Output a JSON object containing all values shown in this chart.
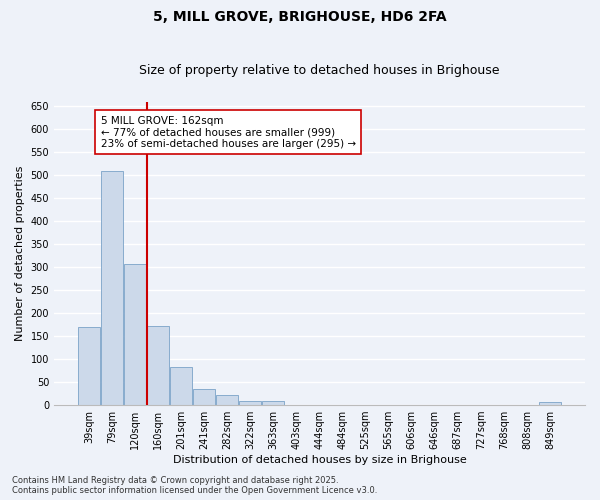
{
  "title": "5, MILL GROVE, BRIGHOUSE, HD6 2FA",
  "subtitle": "Size of property relative to detached houses in Brighouse",
  "xlabel": "Distribution of detached houses by size in Brighouse",
  "ylabel": "Number of detached properties",
  "categories": [
    "39sqm",
    "79sqm",
    "120sqm",
    "160sqm",
    "201sqm",
    "241sqm",
    "282sqm",
    "322sqm",
    "363sqm",
    "403sqm",
    "444sqm",
    "484sqm",
    "525sqm",
    "565sqm",
    "606sqm",
    "646sqm",
    "687sqm",
    "727sqm",
    "768sqm",
    "808sqm",
    "849sqm"
  ],
  "values": [
    170,
    510,
    308,
    172,
    82,
    35,
    22,
    8,
    8,
    0,
    0,
    0,
    0,
    0,
    0,
    0,
    0,
    0,
    0,
    0,
    6
  ],
  "bar_color": "#ccd9ea",
  "bar_edge_color": "#7ba3c8",
  "vline_x_index": 3,
  "vline_color": "#cc0000",
  "annotation_line1": "5 MILL GROVE: 162sqm",
  "annotation_line2": "← 77% of detached houses are smaller (999)",
  "annotation_line3": "23% of semi-detached houses are larger (295) →",
  "annotation_box_color": "#ffffff",
  "annotation_box_edge": "#cc0000",
  "ylim": [
    0,
    660
  ],
  "yticks": [
    0,
    50,
    100,
    150,
    200,
    250,
    300,
    350,
    400,
    450,
    500,
    550,
    600,
    650
  ],
  "background_color": "#eef2f9",
  "grid_color": "#ffffff",
  "footer_text": "Contains HM Land Registry data © Crown copyright and database right 2025.\nContains public sector information licensed under the Open Government Licence v3.0.",
  "title_fontsize": 10,
  "subtitle_fontsize": 9,
  "axis_label_fontsize": 8,
  "tick_fontsize": 7,
  "annotation_fontsize": 7.5,
  "footer_fontsize": 6
}
